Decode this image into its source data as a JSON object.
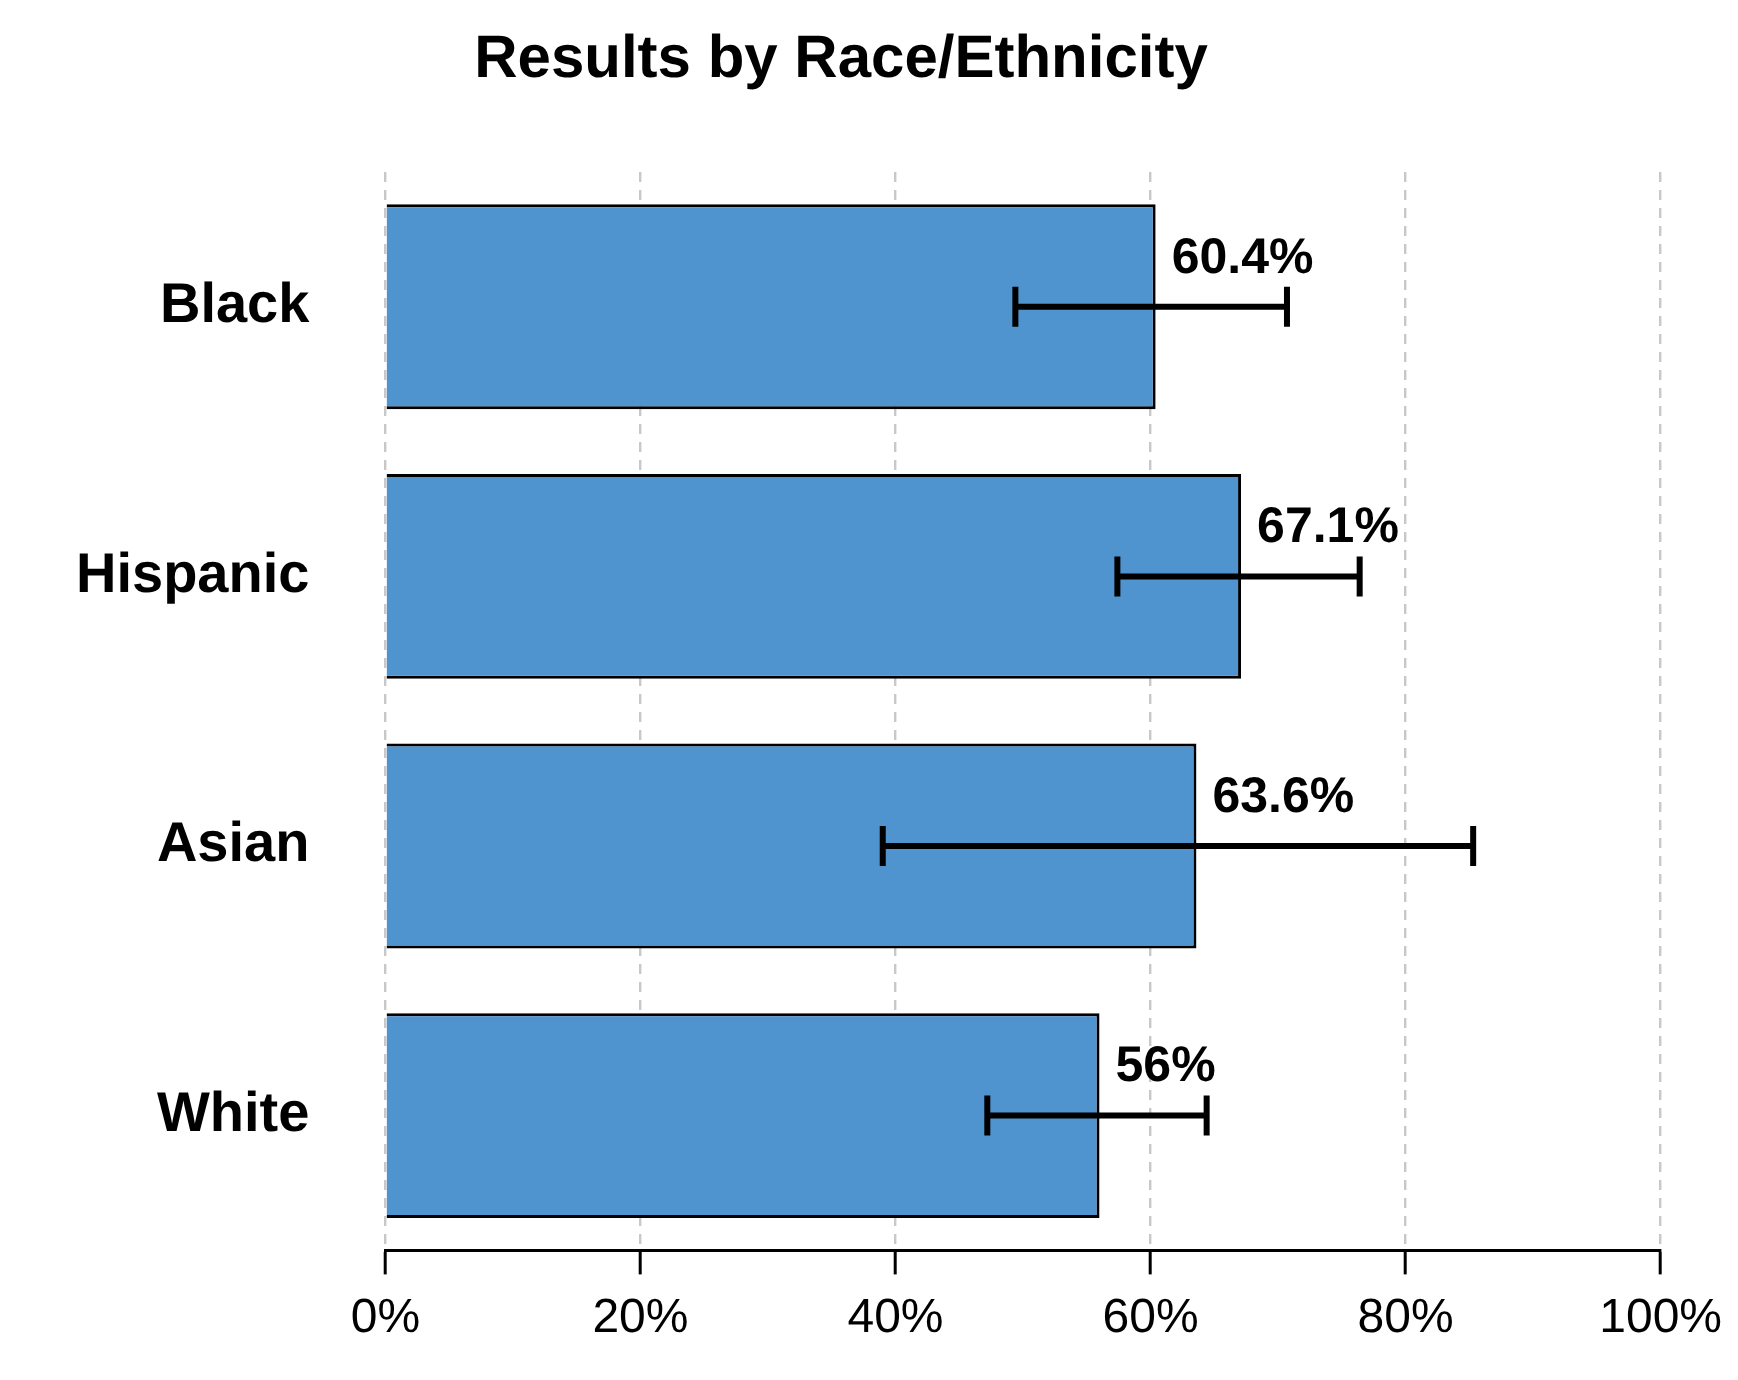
{
  "chart_data": {
    "type": "bar",
    "orientation": "horizontal",
    "title": "Results by Race/Ethnicity",
    "categories": [
      "Black",
      "Hispanic",
      "Asian",
      "White"
    ],
    "values": [
      60.4,
      67.1,
      63.6,
      56
    ],
    "value_labels": [
      "60.4%",
      "67.1%",
      "63.6%",
      "56%"
    ],
    "errors": [
      [
        49.4,
        70.7
      ],
      [
        57.4,
        76.4
      ],
      [
        39.0,
        85.3
      ],
      [
        47.2,
        64.4
      ]
    ],
    "color": "#4f93cf",
    "xlim": [
      0,
      100
    ],
    "xticks": [
      {
        "value": 0,
        "label": "0%"
      },
      {
        "value": 20,
        "label": "20%"
      },
      {
        "value": 40,
        "label": "40%"
      },
      {
        "value": 60,
        "label": "60%"
      },
      {
        "value": 80,
        "label": "80%"
      },
      {
        "value": 100,
        "label": "100%"
      }
    ],
    "grid": "x",
    "line_style": "dashed",
    "legend": false
  }
}
